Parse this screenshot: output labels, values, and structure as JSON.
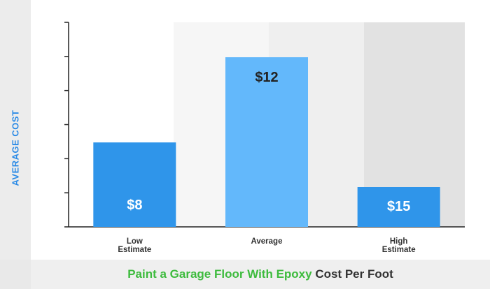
{
  "chart_data": {
    "type": "bar",
    "categories": [
      "Low\nEstimate",
      "Average",
      "High\nEstimate"
    ],
    "values": [
      8,
      12,
      15
    ],
    "data_labels": [
      "$8",
      "$12",
      "$15"
    ],
    "ylabel": "AVERAGE COST",
    "title_green": "Paint a Garage Floor With Epoxy",
    "title_dark": "Cost Per Foot",
    "grid": false,
    "colors": {
      "bar_low": "#2f95ea",
      "bar_avg": "#63b8fb",
      "bar_high": "#2f95ea",
      "label_light": "#ffffff",
      "label_dark": "#222222",
      "title_green": "#3dbb3d",
      "ylabel": "#2a8ae6",
      "shade_light": "#f6f6f6",
      "shade_mid": "#efefef",
      "shade_dark": "#e2e2e2"
    }
  }
}
